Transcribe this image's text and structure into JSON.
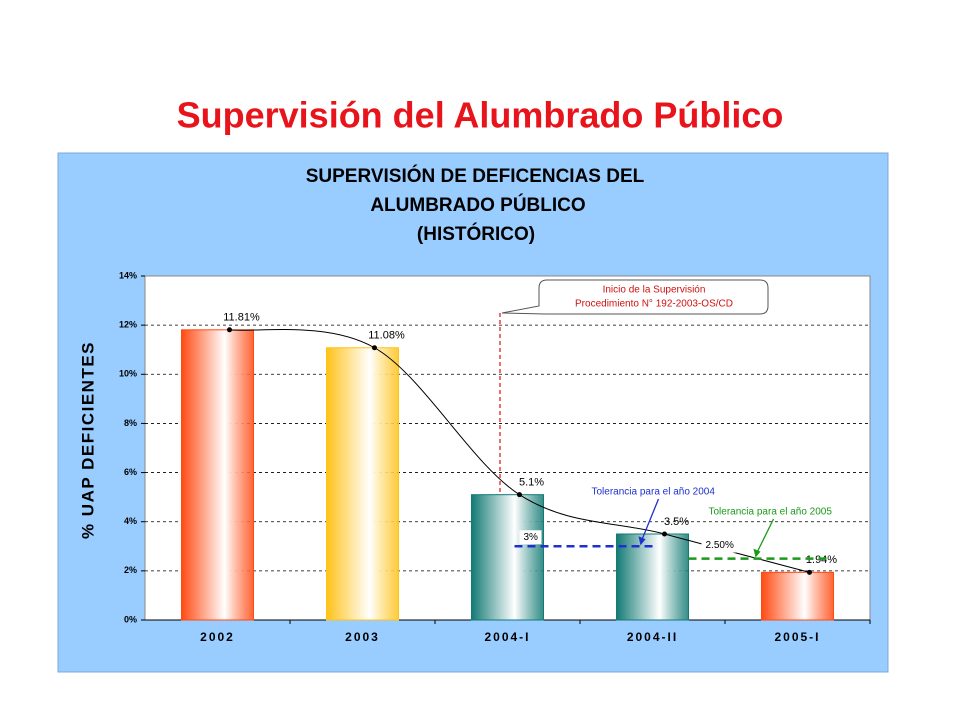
{
  "page_title": "Supervisión del Alumbrado Público",
  "chart_data": {
    "type": "bar",
    "title": [
      "SUPERVISIÓN DE DEFICENCIAS DEL",
      "ALUMBRADO PÚBLICO",
      "(HISTÓRICO)"
    ],
    "y_label": "% UAP DEFICIENTES",
    "categories": [
      "2002",
      "2003",
      "2004-I",
      "2004-II",
      "2005-I"
    ],
    "values": [
      11.81,
      11.08,
      5.1,
      3.5,
      1.94
    ],
    "value_labels": [
      "11.81%",
      "11.08%",
      "5.1%",
      "3.5%",
      "1.94%"
    ],
    "colors": [
      "#ff4a12",
      "#ffc21a",
      "#137a74",
      "#137a74",
      "#ff4a12"
    ],
    "ylim": [
      0,
      14
    ],
    "yticks": [
      {
        "value": 0,
        "label": "0%"
      },
      {
        "value": 2,
        "label": "2%"
      },
      {
        "value": 4,
        "label": "4%"
      },
      {
        "value": 6,
        "label": "6%"
      },
      {
        "value": 8,
        "label": "8%"
      },
      {
        "value": 10,
        "label": "10%"
      },
      {
        "value": 12,
        "label": "12%"
      },
      {
        "value": 14,
        "label": "14%"
      }
    ],
    "grid": true,
    "annotation": [
      "Inicio de la Supervisión",
      "Procedimiento N° 192-2003-OS/CD"
    ],
    "tolerances": [
      {
        "value": 3,
        "label": "3%",
        "note": "Tolerancia para el año 2004",
        "color": "#1f2fd0"
      },
      {
        "value": 2.5,
        "label": "2.50%",
        "note": "Tolerancia para el año 2005",
        "color": "#1a9a1a"
      }
    ]
  }
}
